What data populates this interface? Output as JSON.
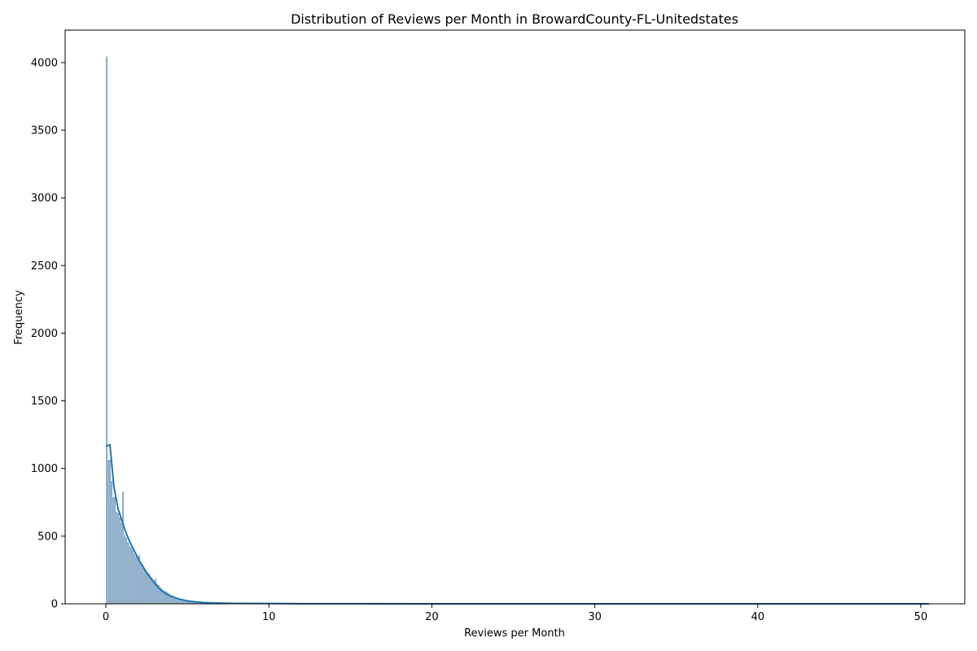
{
  "chart_data": {
    "type": "histogram",
    "title": "Distribution of Reviews per Month in BrowardCounty-FL-Unitedstates",
    "xlabel": "Reviews per Month",
    "ylabel": "Frequency",
    "xlim": [
      -2.5,
      52.7
    ],
    "ylim": [
      0,
      4240
    ],
    "xticks": [
      0,
      10,
      20,
      30,
      40,
      50
    ],
    "yticks": [
      0,
      500,
      1000,
      1500,
      2000,
      2500,
      3000,
      3500,
      4000
    ],
    "bin_width": 0.1,
    "bars": [
      {
        "x": 0.0,
        "y": 4045
      },
      {
        "x": 0.1,
        "y": 1065
      },
      {
        "x": 0.2,
        "y": 1065
      },
      {
        "x": 0.3,
        "y": 910
      },
      {
        "x": 0.4,
        "y": 790
      },
      {
        "x": 0.5,
        "y": 790
      },
      {
        "x": 0.6,
        "y": 680
      },
      {
        "x": 0.7,
        "y": 670
      },
      {
        "x": 0.8,
        "y": 640
      },
      {
        "x": 0.9,
        "y": 600
      },
      {
        "x": 1.0,
        "y": 830
      },
      {
        "x": 1.1,
        "y": 510
      },
      {
        "x": 1.2,
        "y": 490
      },
      {
        "x": 1.3,
        "y": 460
      },
      {
        "x": 1.4,
        "y": 430
      },
      {
        "x": 1.5,
        "y": 420
      },
      {
        "x": 1.6,
        "y": 400
      },
      {
        "x": 1.7,
        "y": 370
      },
      {
        "x": 1.8,
        "y": 350
      },
      {
        "x": 1.9,
        "y": 340
      },
      {
        "x": 2.0,
        "y": 360
      },
      {
        "x": 2.1,
        "y": 290
      },
      {
        "x": 2.2,
        "y": 270
      },
      {
        "x": 2.3,
        "y": 260
      },
      {
        "x": 2.4,
        "y": 240
      },
      {
        "x": 2.5,
        "y": 215
      },
      {
        "x": 2.6,
        "y": 225
      },
      {
        "x": 2.7,
        "y": 200
      },
      {
        "x": 2.8,
        "y": 190
      },
      {
        "x": 2.9,
        "y": 175
      },
      {
        "x": 3.0,
        "y": 185
      },
      {
        "x": 3.1,
        "y": 150
      },
      {
        "x": 3.2,
        "y": 140
      },
      {
        "x": 3.3,
        "y": 125
      },
      {
        "x": 3.4,
        "y": 110
      },
      {
        "x": 3.5,
        "y": 100
      },
      {
        "x": 3.6,
        "y": 95
      },
      {
        "x": 3.7,
        "y": 90
      },
      {
        "x": 3.8,
        "y": 80
      },
      {
        "x": 3.9,
        "y": 70
      },
      {
        "x": 4.0,
        "y": 65
      },
      {
        "x": 4.1,
        "y": 58
      },
      {
        "x": 4.2,
        "y": 52
      },
      {
        "x": 4.3,
        "y": 46
      },
      {
        "x": 4.4,
        "y": 42
      },
      {
        "x": 4.5,
        "y": 38
      },
      {
        "x": 4.6,
        "y": 34
      },
      {
        "x": 4.7,
        "y": 30
      },
      {
        "x": 4.8,
        "y": 27
      },
      {
        "x": 4.9,
        "y": 24
      },
      {
        "x": 5.0,
        "y": 22
      },
      {
        "x": 5.1,
        "y": 20
      },
      {
        "x": 5.2,
        "y": 18
      },
      {
        "x": 5.3,
        "y": 16
      },
      {
        "x": 5.4,
        "y": 14
      },
      {
        "x": 5.5,
        "y": 13
      },
      {
        "x": 5.6,
        "y": 12
      },
      {
        "x": 5.7,
        "y": 11
      },
      {
        "x": 5.8,
        "y": 10
      },
      {
        "x": 5.9,
        "y": 9
      },
      {
        "x": 6.0,
        "y": 8
      },
      {
        "x": 6.1,
        "y": 7
      },
      {
        "x": 6.2,
        "y": 7
      },
      {
        "x": 6.3,
        "y": 6
      },
      {
        "x": 6.4,
        "y": 6
      },
      {
        "x": 6.5,
        "y": 5
      },
      {
        "x": 6.6,
        "y": 5
      },
      {
        "x": 6.7,
        "y": 4
      },
      {
        "x": 6.8,
        "y": 4
      },
      {
        "x": 6.9,
        "y": 4
      },
      {
        "x": 7.0,
        "y": 3
      },
      {
        "x": 7.2,
        "y": 3
      },
      {
        "x": 7.4,
        "y": 3
      },
      {
        "x": 7.6,
        "y": 2
      },
      {
        "x": 7.8,
        "y": 2
      },
      {
        "x": 8.0,
        "y": 2
      },
      {
        "x": 8.5,
        "y": 2
      },
      {
        "x": 9.0,
        "y": 1
      },
      {
        "x": 9.5,
        "y": 1
      },
      {
        "x": 10.0,
        "y": 1
      },
      {
        "x": 11.0,
        "y": 1
      },
      {
        "x": 12.0,
        "y": 1
      },
      {
        "x": 15.0,
        "y": 1
      },
      {
        "x": 50.4,
        "y": 1
      }
    ],
    "kde": {
      "x": [
        0.0,
        0.25,
        0.5,
        0.75,
        1.0,
        1.25,
        1.5,
        1.75,
        2.0,
        2.25,
        2.5,
        2.75,
        3.0,
        3.25,
        3.5,
        3.75,
        4.0,
        4.5,
        5.0,
        5.5,
        6.0,
        7.0,
        8.0,
        10.0,
        12.0,
        15.0,
        20.0,
        30.0,
        40.0,
        50.5
      ],
      "y": [
        1165,
        1175,
        860,
        700,
        610,
        520,
        450,
        390,
        330,
        280,
        230,
        190,
        150,
        115,
        90,
        70,
        55,
        35,
        22,
        14,
        9,
        5,
        3,
        2,
        1,
        1,
        0,
        0,
        0,
        0
      ]
    },
    "colors": {
      "bar_fill": "#6f96b9",
      "bar_edge": "#ffffff",
      "kde_line": "#1f77b4"
    },
    "grid": false,
    "legend": "none"
  }
}
